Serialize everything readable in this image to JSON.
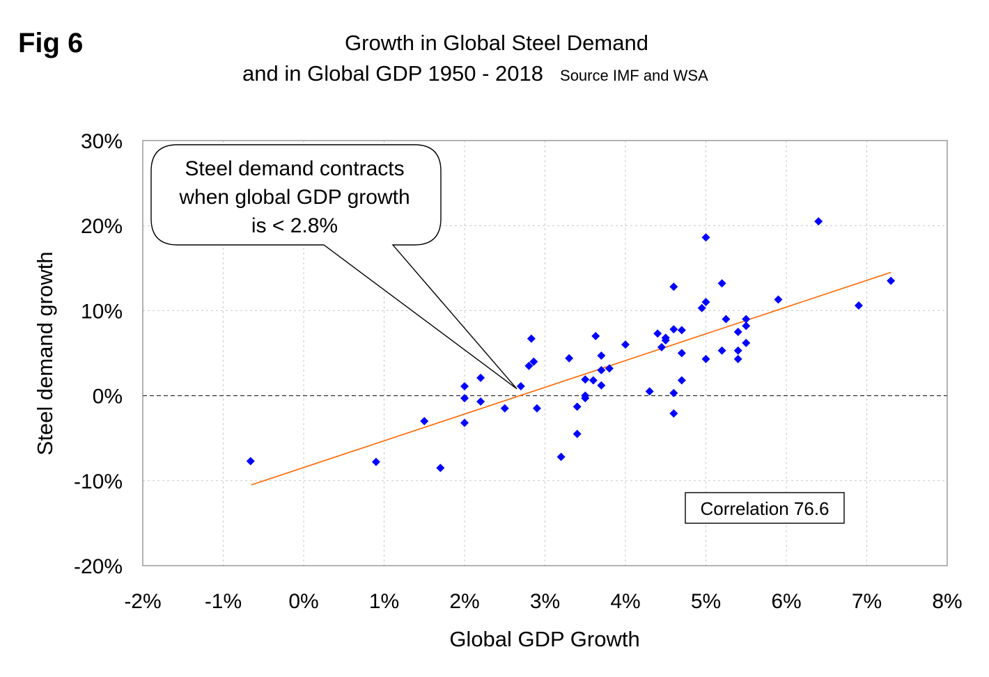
{
  "header": {
    "fig_label": "Fig 6",
    "title_line1": "Growth in Global Steel Demand",
    "title_line2": "and in Global GDP 1950 - 2018",
    "source": "Source IMF and WSA"
  },
  "chart_data": {
    "type": "scatter",
    "title": "Growth in Global Steel Demand and in Global GDP 1950 - 2018",
    "xlabel": "Global GDP Growth",
    "ylabel": "Steel demand growth",
    "xlim": [
      -2,
      8
    ],
    "ylim": [
      -20,
      30
    ],
    "x_ticks": [
      -2,
      -1,
      0,
      1,
      2,
      3,
      4,
      5,
      6,
      7,
      8
    ],
    "x_tick_labels": [
      "-2%",
      "-1%",
      "0%",
      "1%",
      "2%",
      "3%",
      "4%",
      "5%",
      "6%",
      "7%",
      "8%"
    ],
    "y_ticks": [
      30,
      20,
      10,
      0,
      -10,
      -20
    ],
    "y_tick_labels": [
      "30%",
      "20%",
      "10%",
      "0%",
      "-10%",
      "-20%"
    ],
    "grid": "dashed",
    "marker_color": "#0000FF",
    "trendline": {
      "color": "#FF6600",
      "x": [
        -0.65,
        7.3
      ],
      "y": [
        -10.5,
        14.5
      ]
    },
    "zero_line": "dashed",
    "points": [
      {
        "x": -0.66,
        "y": -7.7
      },
      {
        "x": 0.9,
        "y": -7.8
      },
      {
        "x": 1.5,
        "y": -3.0
      },
      {
        "x": 1.7,
        "y": -8.5
      },
      {
        "x": 2.0,
        "y": 1.1
      },
      {
        "x": 2.0,
        "y": -0.3
      },
      {
        "x": 2.0,
        "y": -3.2
      },
      {
        "x": 2.2,
        "y": 2.1
      },
      {
        "x": 2.2,
        "y": -0.7
      },
      {
        "x": 2.5,
        "y": -1.5
      },
      {
        "x": 2.7,
        "y": 1.1
      },
      {
        "x": 2.8,
        "y": 3.5
      },
      {
        "x": 2.83,
        "y": 6.7
      },
      {
        "x": 2.86,
        "y": 4.0
      },
      {
        "x": 2.9,
        "y": -1.5
      },
      {
        "x": 3.2,
        "y": -7.2
      },
      {
        "x": 3.3,
        "y": 4.4
      },
      {
        "x": 3.4,
        "y": -1.3
      },
      {
        "x": 3.4,
        "y": -4.5
      },
      {
        "x": 3.5,
        "y": 1.9
      },
      {
        "x": 3.5,
        "y": 0.0
      },
      {
        "x": 3.5,
        "y": -0.3
      },
      {
        "x": 3.6,
        "y": 1.8
      },
      {
        "x": 3.63,
        "y": 7.0
      },
      {
        "x": 3.7,
        "y": 4.7
      },
      {
        "x": 3.7,
        "y": 3.0
      },
      {
        "x": 3.7,
        "y": 1.2
      },
      {
        "x": 3.8,
        "y": 3.2
      },
      {
        "x": 4.0,
        "y": 6.0
      },
      {
        "x": 4.3,
        "y": 0.5
      },
      {
        "x": 4.4,
        "y": 7.3
      },
      {
        "x": 4.45,
        "y": 5.7
      },
      {
        "x": 4.5,
        "y": 6.8
      },
      {
        "x": 4.5,
        "y": 6.5
      },
      {
        "x": 4.6,
        "y": 12.8
      },
      {
        "x": 4.6,
        "y": 7.8
      },
      {
        "x": 4.6,
        "y": 0.3
      },
      {
        "x": 4.6,
        "y": -2.1
      },
      {
        "x": 4.7,
        "y": 7.7
      },
      {
        "x": 4.7,
        "y": 5.0
      },
      {
        "x": 4.7,
        "y": 1.8
      },
      {
        "x": 4.95,
        "y": 10.3
      },
      {
        "x": 5.0,
        "y": 18.6
      },
      {
        "x": 5.0,
        "y": 11.0
      },
      {
        "x": 5.0,
        "y": 4.3
      },
      {
        "x": 5.2,
        "y": 13.2
      },
      {
        "x": 5.2,
        "y": 5.3
      },
      {
        "x": 5.25,
        "y": 9.0
      },
      {
        "x": 5.4,
        "y": 7.5
      },
      {
        "x": 5.4,
        "y": 5.3
      },
      {
        "x": 5.4,
        "y": 4.3
      },
      {
        "x": 5.5,
        "y": 9.0
      },
      {
        "x": 5.5,
        "y": 8.2
      },
      {
        "x": 5.5,
        "y": 6.2
      },
      {
        "x": 5.9,
        "y": 11.3
      },
      {
        "x": 6.4,
        "y": 20.5
      },
      {
        "x": 6.9,
        "y": 10.6
      },
      {
        "x": 7.3,
        "y": 13.5
      }
    ],
    "annotations": {
      "callout_line1": "Steel demand contracts",
      "callout_line2": "when global GDP growth",
      "callout_line3": "is < 2.8%",
      "callout_target": {
        "x": 2.65,
        "y": 0.8
      },
      "correlation": "Correlation 76.6"
    }
  }
}
